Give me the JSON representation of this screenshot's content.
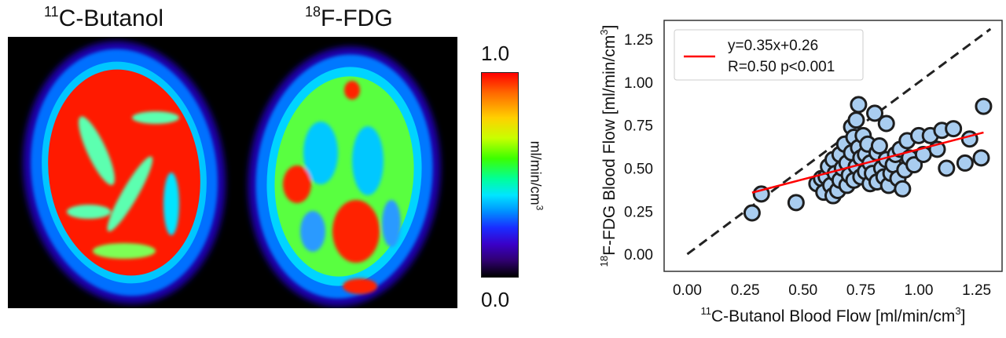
{
  "images": {
    "left_title": {
      "sup": "11",
      "text": "C-Butanol"
    },
    "right_title": {
      "sup": "18",
      "text": "F-FDG"
    }
  },
  "colorbar": {
    "max": "1.0",
    "min": "0.0",
    "unit": "ml/min/cm",
    "unit_sup": "3",
    "colors": [
      "#000000",
      "#3a00c8",
      "#1a2cff",
      "#0090ff",
      "#00e5ff",
      "#3cff00",
      "#c8ff00",
      "#ffd000",
      "#ff6a00",
      "#ff0000"
    ]
  },
  "chart_data": {
    "type": "scatter",
    "xlabel": {
      "sup": "11",
      "text": "C-Butanol Blood Flow [ml/min/cm",
      "sup2": "3",
      "end": "]"
    },
    "ylabel": {
      "sup": "18",
      "text": "F-FDG Blood Flow [ml/min/cm",
      "sup2": "3",
      "end": "]"
    },
    "xlim": [
      -0.1,
      1.36
    ],
    "ylim": [
      -0.1,
      1.36
    ],
    "xticks": [
      "0.00",
      "0.25",
      "0.50",
      "0.75",
      "1.00",
      "1.25"
    ],
    "yticks": [
      "0.00",
      "0.25",
      "0.50",
      "0.75",
      "1.00",
      "1.25"
    ],
    "grid": false,
    "legend": {
      "position": "top-left",
      "line1": "y=0.35x+0.26",
      "line2": "R=0.50 p<0.001"
    },
    "fit": {
      "slope": 0.35,
      "intercept": 0.26,
      "x_range": [
        0.28,
        1.28
      ],
      "color": "#ff0000"
    },
    "identity_line": {
      "x_range": [
        0.0,
        1.31
      ],
      "color": "#222222"
    },
    "marker": {
      "fill": "#a9cdf0",
      "stroke": "#1e1e1e"
    },
    "points": [
      [
        0.28,
        0.24
      ],
      [
        0.32,
        0.35
      ],
      [
        0.47,
        0.3
      ],
      [
        0.56,
        0.41
      ],
      [
        0.58,
        0.44
      ],
      [
        0.59,
        0.36
      ],
      [
        0.6,
        0.45
      ],
      [
        0.61,
        0.51
      ],
      [
        0.62,
        0.4
      ],
      [
        0.63,
        0.34
      ],
      [
        0.63,
        0.55
      ],
      [
        0.64,
        0.47
      ],
      [
        0.65,
        0.37
      ],
      [
        0.66,
        0.43
      ],
      [
        0.66,
        0.58
      ],
      [
        0.67,
        0.5
      ],
      [
        0.68,
        0.64
      ],
      [
        0.69,
        0.4
      ],
      [
        0.69,
        0.53
      ],
      [
        0.7,
        0.46
      ],
      [
        0.71,
        0.74
      ],
      [
        0.71,
        0.59
      ],
      [
        0.72,
        0.43
      ],
      [
        0.72,
        0.68
      ],
      [
        0.73,
        0.78
      ],
      [
        0.73,
        0.51
      ],
      [
        0.74,
        0.87
      ],
      [
        0.74,
        0.62
      ],
      [
        0.75,
        0.45
      ],
      [
        0.75,
        0.56
      ],
      [
        0.76,
        0.69
      ],
      [
        0.77,
        0.48
      ],
      [
        0.77,
        0.58
      ],
      [
        0.78,
        0.64
      ],
      [
        0.79,
        0.41
      ],
      [
        0.79,
        0.53
      ],
      [
        0.8,
        0.47
      ],
      [
        0.81,
        0.82
      ],
      [
        0.82,
        0.59
      ],
      [
        0.82,
        0.42
      ],
      [
        0.83,
        0.63
      ],
      [
        0.84,
        0.5
      ],
      [
        0.85,
        0.45
      ],
      [
        0.86,
        0.76
      ],
      [
        0.86,
        0.55
      ],
      [
        0.87,
        0.4
      ],
      [
        0.88,
        0.47
      ],
      [
        0.89,
        0.52
      ],
      [
        0.9,
        0.58
      ],
      [
        0.91,
        0.44
      ],
      [
        0.92,
        0.61
      ],
      [
        0.93,
        0.38
      ],
      [
        0.94,
        0.49
      ],
      [
        0.95,
        0.66
      ],
      [
        0.96,
        0.56
      ],
      [
        0.98,
        0.52
      ],
      [
        1.0,
        0.69
      ],
      [
        1.02,
        0.58
      ],
      [
        1.05,
        0.69
      ],
      [
        1.08,
        0.61
      ],
      [
        1.1,
        0.72
      ],
      [
        1.12,
        0.5
      ],
      [
        1.15,
        0.73
      ],
      [
        1.2,
        0.53
      ],
      [
        1.22,
        0.67
      ],
      [
        1.27,
        0.56
      ],
      [
        1.28,
        0.86
      ]
    ]
  }
}
